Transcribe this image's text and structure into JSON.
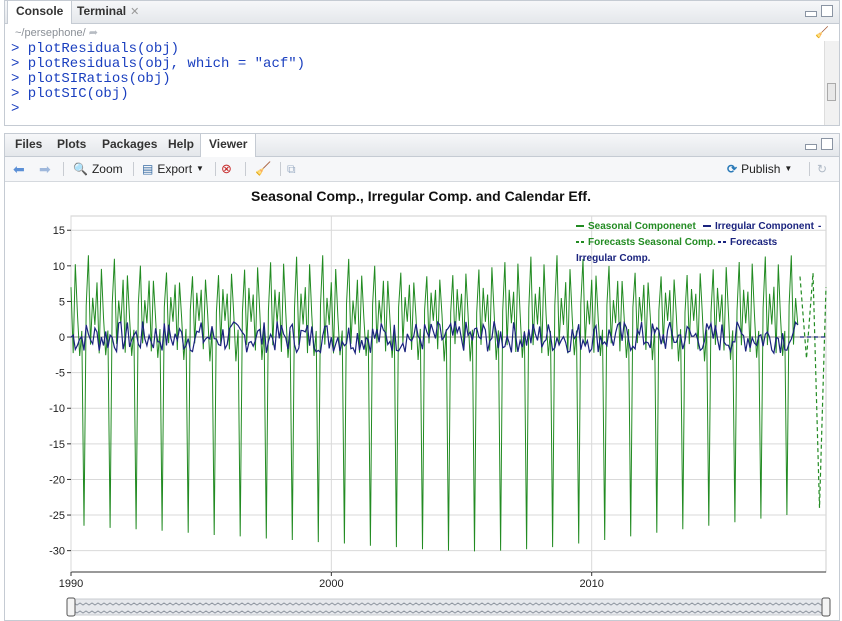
{
  "console_pane": {
    "tabs": [
      {
        "label": "Console",
        "active": true
      },
      {
        "label": "Terminal",
        "active": false
      }
    ],
    "path": "~/persephone/",
    "lines": [
      "> plotResiduals(obj)",
      "> plotResiduals(obj, which = \"acf\")",
      "> plotSIRatios(obj)",
      "> plotSIC(obj)",
      "> "
    ]
  },
  "files_pane": {
    "tabs": [
      "Files",
      "Plots",
      "Packages",
      "Help",
      "Viewer"
    ],
    "active_tab": "Viewer",
    "toolbar": {
      "zoom_label": "Zoom",
      "export_label": "Export",
      "publish_label": "Publish"
    }
  },
  "chart_data": {
    "type": "line",
    "title": "Seasonal Comp., Irregular Comp. and Calendar Eff.",
    "xlabel": "",
    "ylabel": "",
    "x_ticks": [
      "1990",
      "2000",
      "2010"
    ],
    "y_ticks": [
      15,
      10,
      5,
      0,
      -5,
      -10,
      -15,
      -20,
      -25,
      -30
    ],
    "xlim": [
      1990,
      2019
    ],
    "ylim": [
      -33,
      17
    ],
    "legend": {
      "placement": "top-right",
      "entries": [
        {
          "label": "Seasonal Componenet",
          "color": "#228b22",
          "style": "solid"
        },
        {
          "label": "Irregular Component",
          "color": "#1a237e",
          "style": "solid"
        },
        {
          "label": "Forecasts Seasonal Comp.",
          "color": "#228b22",
          "style": "dashed"
        },
        {
          "label": "Forecasts Irregular Comp.",
          "color": "#1a237e",
          "style": "dashed"
        }
      ]
    },
    "series": [
      {
        "name": "Seasonal Componenet",
        "color": "#228b22",
        "pattern_by_month": [
          7,
          -2,
          9,
          3,
          -3,
          1,
          -26,
          4,
          10,
          -1,
          6,
          2
        ],
        "trough_by_year": [
          -26.5,
          -26.8,
          -27.0,
          -27.2,
          -27.5,
          -27.8,
          -28.0,
          -28.3,
          -28.5,
          -28.8,
          -29.0,
          -29.3,
          -29.5,
          -29.8,
          -30.0,
          -30.1,
          -30.0,
          -29.8,
          -29.5,
          -29.0,
          -28.5,
          -28.0,
          -27.5,
          -27.0,
          -26.5,
          -26.0,
          -25.5,
          -25.0,
          -24.5
        ],
        "x_start": 1990,
        "x_end": 2018
      },
      {
        "name": "Irregular Component",
        "color": "#1a237e",
        "range": [
          -2.5,
          2.5
        ],
        "x_start": 1990,
        "x_end": 2018
      },
      {
        "name": "Forecasts Seasonal Comp.",
        "color": "#228b22",
        "x": [
          2018.0,
          2018.25,
          2018.5,
          2018.75,
          2019.0
        ],
        "y": [
          8.5,
          -3,
          9,
          -24,
          7
        ]
      },
      {
        "name": "Forecasts Irregular Comp.",
        "color": "#1a237e",
        "x": [
          2018.0,
          2019.0
        ],
        "y": [
          0,
          0
        ]
      }
    ],
    "range_selector": true
  }
}
